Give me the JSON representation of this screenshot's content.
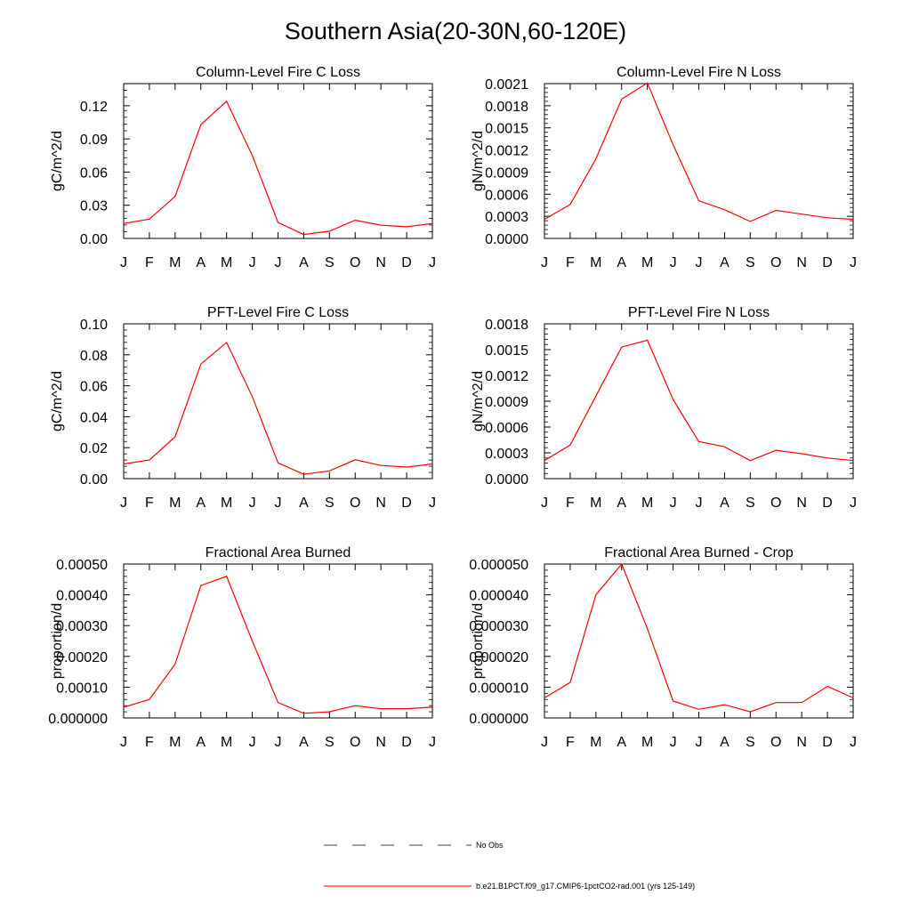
{
  "figure": {
    "title": "Southern Asia(20-30N,60-120E)"
  },
  "months": [
    "J",
    "F",
    "M",
    "A",
    "M",
    "J",
    "J",
    "A",
    "S",
    "O",
    "N",
    "D",
    "J"
  ],
  "colors": {
    "model": "#ff0000",
    "axes": "#000000"
  },
  "chart_data": [
    {
      "type": "line",
      "title": "Column-Level Fire C Loss",
      "ylabel": "gC/m^2/d",
      "ylim": [
        0,
        0.14
      ],
      "yticks": [
        0,
        0.03,
        0.06,
        0.09,
        0.12
      ],
      "ytick_labels": [
        "0.00",
        "0.03",
        "0.06",
        "0.09",
        "0.12"
      ],
      "series": [
        {
          "values": [
            0.0135,
            0.0175,
            0.038,
            0.103,
            0.124,
            0.075,
            0.0145,
            0.0035,
            0.0065,
            0.0165,
            0.012,
            0.0105,
            0.0135
          ]
        }
      ]
    },
    {
      "type": "line",
      "title": "Column-Level Fire N Loss",
      "ylabel": "gN/m^2/d",
      "ylim": [
        0,
        0.0021
      ],
      "yticks": [
        0,
        0.0003,
        0.0006,
        0.0009,
        0.0012,
        0.0015,
        0.0018,
        0.0021
      ],
      "ytick_labels": [
        "0.0000",
        "0.0003",
        "0.0006",
        "0.0009",
        "0.0012",
        "0.0015",
        "0.0018",
        "0.0021"
      ],
      "series": [
        {
          "values": [
            0.00026,
            0.00046,
            0.00108,
            0.00189,
            0.00211,
            0.00127,
            0.00051,
            0.00039,
            0.00023,
            0.00038,
            0.00033,
            0.00028,
            0.00026
          ]
        }
      ]
    },
    {
      "type": "line",
      "title": "PFT-Level Fire C Loss",
      "ylabel": "gC/m^2/d",
      "ylim": [
        0,
        0.1
      ],
      "yticks": [
        0,
        0.02,
        0.04,
        0.06,
        0.08,
        0.1
      ],
      "ytick_labels": [
        "0.00",
        "0.02",
        "0.04",
        "0.06",
        "0.08",
        "0.10"
      ],
      "series": [
        {
          "values": [
            0.0095,
            0.012,
            0.027,
            0.074,
            0.088,
            0.053,
            0.0102,
            0.0028,
            0.005,
            0.0122,
            0.0085,
            0.0075,
            0.0095
          ]
        }
      ]
    },
    {
      "type": "line",
      "title": "PFT-Level Fire N Loss",
      "ylabel": "gN/m^2/d",
      "ylim": [
        0,
        0.0018
      ],
      "yticks": [
        0,
        0.0003,
        0.0006,
        0.0009,
        0.0012,
        0.0015,
        0.0018
      ],
      "ytick_labels": [
        "0.0000",
        "0.0003",
        "0.0006",
        "0.0009",
        "0.0012",
        "0.0015",
        "0.0018"
      ],
      "series": [
        {
          "values": [
            0.00021,
            0.00039,
            0.00096,
            0.00153,
            0.00161,
            0.00092,
            0.00043,
            0.00037,
            0.00021,
            0.00033,
            0.00029,
            0.00024,
            0.00021
          ]
        }
      ]
    },
    {
      "type": "line",
      "title": "Fractional Area Burned",
      "ylabel": "proportion/d",
      "ylim": [
        0,
        0.0005
      ],
      "yticks": [
        0,
        0.0001,
        0.0002,
        0.0003,
        0.0004,
        0.0005
      ],
      "ytick_labels": [
        "0.000000",
        "0.00010",
        "0.00020",
        "0.00030",
        "0.00040",
        "0.00050"
      ],
      "series": [
        {
          "values": [
            3.5e-05,
            6e-05,
            0.000175,
            0.00043,
            0.00046,
            0.00025,
            5e-05,
            1.5e-05,
            2e-05,
            4e-05,
            3e-05,
            3e-05,
            3.5e-05
          ]
        }
      ]
    },
    {
      "type": "line",
      "title": "Fractional Area Burned - Crop",
      "ylabel": "proportion/d",
      "ylim": [
        0,
        5e-05
      ],
      "yticks": [
        0,
        1e-05,
        2e-05,
        3e-05,
        4e-05,
        5e-05
      ],
      "ytick_labels": [
        "0.000000",
        "0.000010",
        "0.000020",
        "0.000030",
        "0.000040",
        "0.000050"
      ],
      "series": [
        {
          "values": [
            6.5e-06,
            1.15e-05,
            4e-05,
            5e-05,
            2.9e-05,
            5.5e-06,
            2.8e-06,
            4.3e-06,
            2e-06,
            5e-06,
            5e-06,
            1.03e-05,
            6.5e-06
          ]
        }
      ]
    }
  ],
  "legend": [
    {
      "label": "No Obs",
      "style": "dashed",
      "color": "#000000"
    },
    {
      "label": "b.e21.B1PCT.f09_g17.CMIP6-1pctCO2-rad.001 (yrs 125-149)",
      "style": "solid",
      "color": "#ff0000"
    }
  ]
}
